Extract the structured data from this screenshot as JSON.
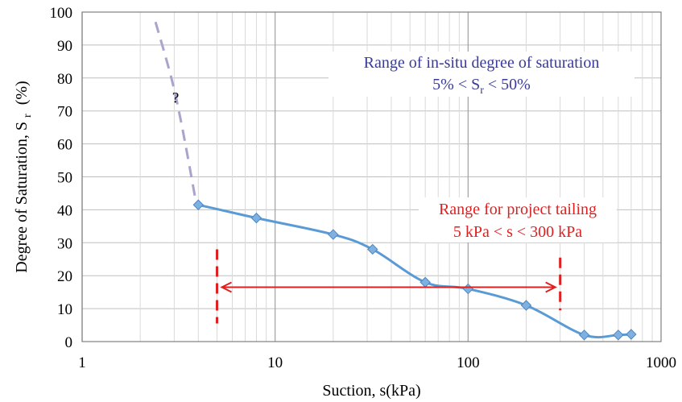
{
  "chart_data": {
    "type": "line",
    "xscale": "log",
    "xlim": [
      1,
      1000
    ],
    "ylim": [
      0,
      100
    ],
    "xticks": [
      1,
      10,
      100,
      1000
    ],
    "yticks": [
      0,
      10,
      20,
      30,
      40,
      50,
      60,
      70,
      80,
      90,
      100
    ],
    "xlabel": "Suction, s(kPa)",
    "ylabel_main": "Degree of Saturation, S",
    "ylabel_sub": "r",
    "ylabel_unit": "(%)",
    "grid": true,
    "series": [
      {
        "color": "#5b9bd5",
        "marker": "diamond",
        "x": [
          4,
          8,
          20,
          32,
          60,
          100,
          200,
          400,
          600,
          700
        ],
        "y": [
          41.5,
          37.5,
          32.5,
          28,
          18,
          16,
          11,
          2,
          2,
          2.2
        ]
      },
      {
        "color": "#a9a4cc",
        "style": "dashed",
        "x": [
          2.4,
          2.9,
          3.3,
          3.9
        ],
        "y": [
          97,
          80,
          65,
          42
        ]
      }
    ],
    "question_mark": "?",
    "annotations": {
      "saturation_line1": "Range of in-situ degree of saturation",
      "saturation_line2_a": "5% < S",
      "saturation_line2_sub": "r",
      "saturation_line2_b": " < 50%",
      "tailing_line1": "Range for project tailing",
      "tailing_line2": "5 kPa < s < 300 kPa"
    },
    "range_markers": {
      "left_x": 5,
      "right_x": 300,
      "arrow_y": 16.5,
      "color": "#e02020"
    }
  }
}
